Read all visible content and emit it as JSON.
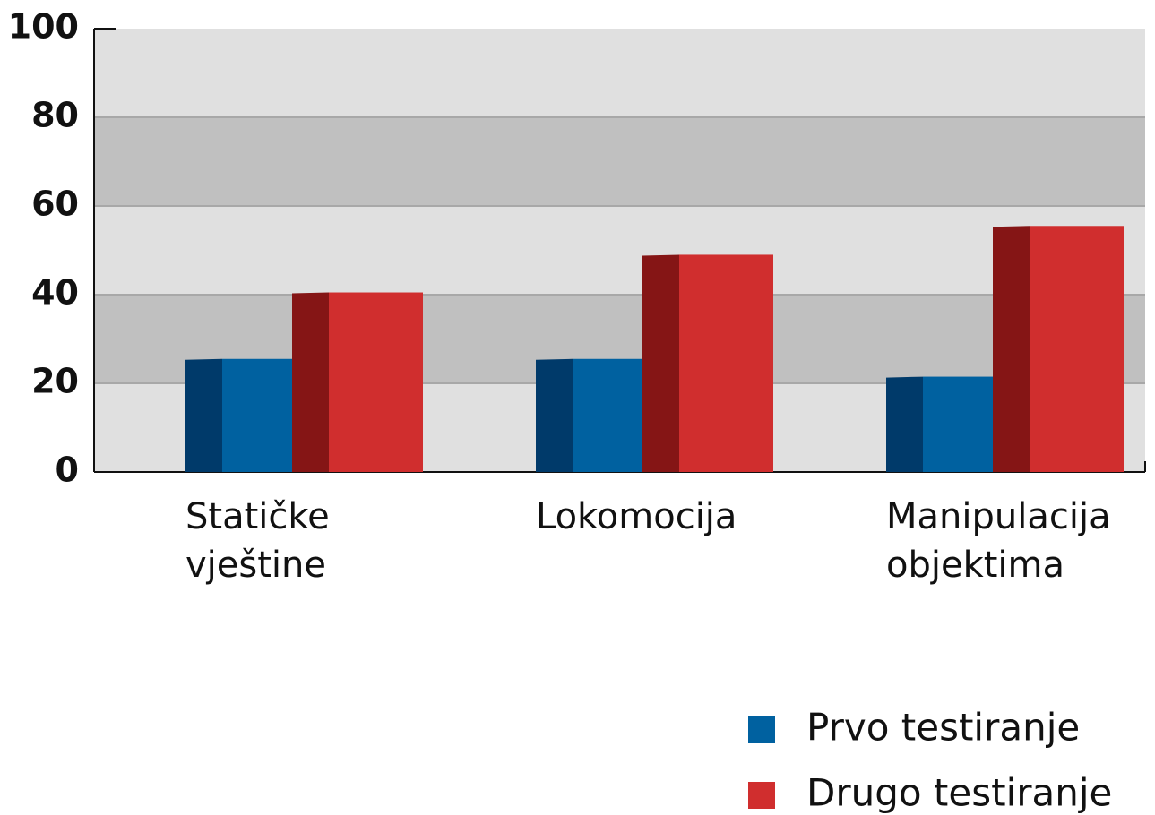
{
  "chart_data": {
    "type": "bar",
    "categories": [
      "Statičke vještine",
      "Lokomocija",
      "Manipulacija objektima"
    ],
    "series": [
      {
        "name": "Prvo testiranje",
        "color": "#0061a0",
        "side_color": "#003a6a",
        "values": [
          25.5,
          25.5,
          21.5
        ]
      },
      {
        "name": "Drugo testiranje",
        "color": "#d02e2e",
        "side_color": "#851515",
        "values": [
          40.5,
          49,
          55.5
        ]
      }
    ],
    "ylim": [
      0,
      100
    ],
    "yticks": [
      0,
      20,
      40,
      60,
      80,
      100
    ],
    "grid": true,
    "legend": "bottom-right"
  }
}
